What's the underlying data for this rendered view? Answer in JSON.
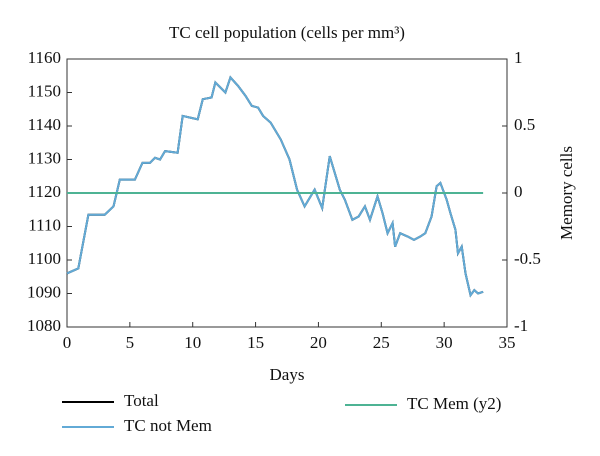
{
  "chart_data": {
    "type": "line",
    "title": "TC cell population (cells per mm³)",
    "xlabel": "Days",
    "y2label": "Memory cells",
    "xlim": [
      0,
      35
    ],
    "xticks": [
      0,
      5,
      10,
      15,
      20,
      25,
      30,
      35
    ],
    "ylim": [
      1080,
      1160
    ],
    "yticks": [
      1080,
      1090,
      1100,
      1110,
      1120,
      1130,
      1140,
      1150,
      1160
    ],
    "y2lim": [
      -1,
      1
    ],
    "y2ticks": [
      -1,
      -0.5,
      0,
      0.5,
      1
    ],
    "legend": "bottom",
    "series": [
      {
        "name": "Total",
        "color": "#000000",
        "x": [
          0,
          0.6,
          0.9,
          1.7,
          3.0,
          3.7,
          4.2,
          5.4,
          6.0,
          6.6,
          7.0,
          7.4,
          7.8,
          8.8,
          9.2,
          9.8,
          10.4,
          10.8,
          11.5,
          11.8,
          12.6,
          13.0,
          13.6,
          14.2,
          14.7,
          15.2,
          15.6,
          16.2,
          17.0,
          17.7,
          18.3,
          18.9,
          19.7,
          20.3,
          20.9,
          21.7,
          22.1,
          22.7,
          23.2,
          23.7,
          24.1,
          24.7,
          25.1,
          25.5,
          25.9,
          26.1,
          26.5,
          27.1,
          27.6,
          28.1,
          28.5,
          29.0,
          29.4,
          29.7,
          30.2,
          30.5,
          30.9,
          31.1,
          31.4,
          31.7,
          32.1,
          32.4,
          32.7,
          33.1
        ],
        "values": [
          1096,
          1097,
          1097.5,
          1113.5,
          1113.5,
          1116,
          1124,
          1124,
          1129,
          1129,
          1130.5,
          1130,
          1132.5,
          1132,
          1143,
          1142.5,
          1142,
          1148,
          1148.5,
          1153,
          1150,
          1154.5,
          1152,
          1149,
          1146,
          1145.5,
          1143,
          1141,
          1136,
          1130,
          1121,
          1116,
          1121,
          1115.5,
          1131,
          1121,
          1118,
          1112,
          1113,
          1116,
          1112,
          1119,
          1114,
          1108,
          1111,
          1104,
          1108,
          1107,
          1106,
          1107,
          1108,
          1113,
          1122,
          1123,
          1118,
          1114,
          1109,
          1102,
          1104,
          1096,
          1089.5,
          1091,
          1090,
          1090.5
        ]
      },
      {
        "name": "TC not Mem",
        "color": "#62aad6",
        "x": [
          0,
          0.6,
          0.9,
          1.7,
          3.0,
          3.7,
          4.2,
          5.4,
          6.0,
          6.6,
          7.0,
          7.4,
          7.8,
          8.8,
          9.2,
          9.8,
          10.4,
          10.8,
          11.5,
          11.8,
          12.6,
          13.0,
          13.6,
          14.2,
          14.7,
          15.2,
          15.6,
          16.2,
          17.0,
          17.7,
          18.3,
          18.9,
          19.7,
          20.3,
          20.9,
          21.7,
          22.1,
          22.7,
          23.2,
          23.7,
          24.1,
          24.7,
          25.1,
          25.5,
          25.9,
          26.1,
          26.5,
          27.1,
          27.6,
          28.1,
          28.5,
          29.0,
          29.4,
          29.7,
          30.2,
          30.5,
          30.9,
          31.1,
          31.4,
          31.7,
          32.1,
          32.4,
          32.7,
          33.1
        ],
        "values": [
          1096,
          1097,
          1097.5,
          1113.5,
          1113.5,
          1116,
          1124,
          1124,
          1129,
          1129,
          1130.5,
          1130,
          1132.5,
          1132,
          1143,
          1142.5,
          1142,
          1148,
          1148.5,
          1153,
          1150,
          1154.5,
          1152,
          1149,
          1146,
          1145.5,
          1143,
          1141,
          1136,
          1130,
          1121,
          1116,
          1121,
          1115.5,
          1131,
          1121,
          1118,
          1112,
          1113,
          1116,
          1112,
          1119,
          1114,
          1108,
          1111,
          1104,
          1108,
          1107,
          1106,
          1107,
          1108,
          1113,
          1122,
          1123,
          1118,
          1114,
          1109,
          1102,
          1104,
          1096,
          1089.5,
          1091,
          1090,
          1090.5
        ]
      },
      {
        "name": "TC Mem (y2)",
        "color": "#4db394",
        "axis": "y2",
        "x": [
          0,
          33.1
        ],
        "values": [
          0,
          0
        ]
      }
    ]
  }
}
